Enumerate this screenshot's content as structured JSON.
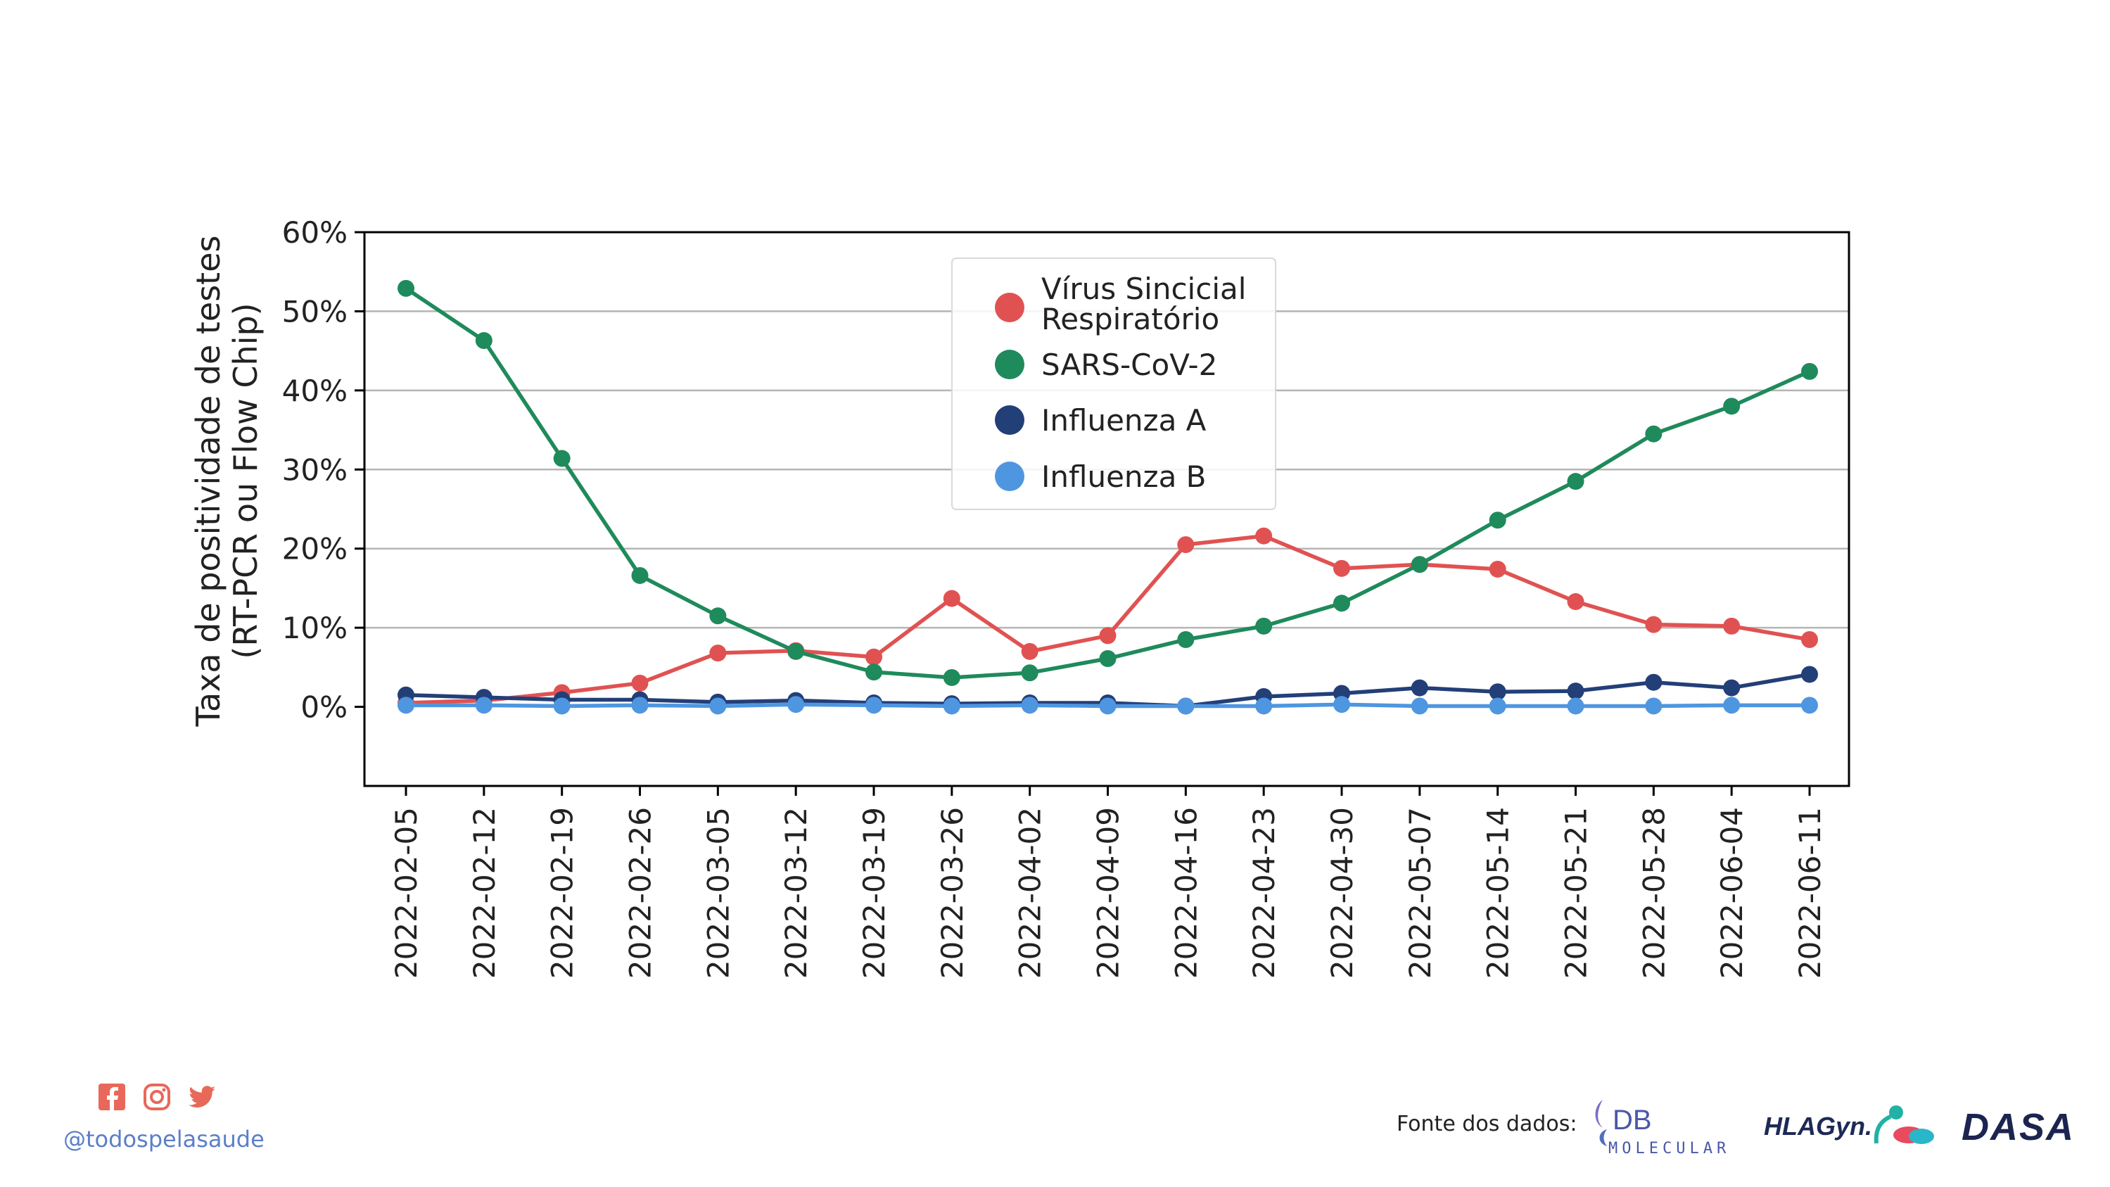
{
  "chart_data": {
    "type": "line",
    "ylabel_line1": "Taxa de positividade de testes",
    "ylabel_line2": "(RT-PCR ou Flow Chip)",
    "xlabel": "",
    "ylim": [
      -10,
      60
    ],
    "yticks": [
      0,
      10,
      20,
      30,
      40,
      50,
      60
    ],
    "ytick_labels": [
      "0%",
      "10%",
      "20%",
      "30%",
      "40%",
      "50%",
      "60%"
    ],
    "grid": "horizontal",
    "legend_position": "top-center",
    "categories": [
      "2022-02-05",
      "2022-02-12",
      "2022-02-19",
      "2022-02-26",
      "2022-03-05",
      "2022-03-12",
      "2022-03-19",
      "2022-03-26",
      "2022-04-02",
      "2022-04-09",
      "2022-04-16",
      "2022-04-23",
      "2022-04-30",
      "2022-05-07",
      "2022-05-14",
      "2022-05-21",
      "2022-05-28",
      "2022-06-04",
      "2022-06-11"
    ],
    "series": [
      {
        "name": "Vírus Sincicial Respiratório",
        "legend_lines": [
          "Vírus Sincicial",
          "Respiratório"
        ],
        "color": "#e05252",
        "values": [
          0.5,
          0.8,
          1.8,
          3.0,
          6.8,
          7.1,
          6.3,
          13.7,
          7.0,
          9.0,
          20.5,
          21.6,
          17.5,
          18.0,
          17.4,
          13.3,
          10.4,
          10.2,
          8.5
        ]
      },
      {
        "name": "SARS-CoV-2",
        "legend_lines": [
          "SARS-CoV-2"
        ],
        "color": "#1f8a5b",
        "values": [
          52.9,
          46.3,
          31.4,
          16.6,
          11.5,
          7.0,
          4.4,
          3.7,
          4.3,
          6.1,
          8.5,
          10.2,
          13.1,
          18.0,
          23.6,
          28.5,
          34.5,
          38.0,
          42.4
        ]
      },
      {
        "name": "Influenza A",
        "legend_lines": [
          "Influenza A"
        ],
        "color": "#233f78",
        "values": [
          1.5,
          1.2,
          0.9,
          0.9,
          0.6,
          0.8,
          0.5,
          0.4,
          0.5,
          0.5,
          0.1,
          1.3,
          1.7,
          2.4,
          1.9,
          2.0,
          3.1,
          2.4,
          4.1
        ]
      },
      {
        "name": "Influenza B",
        "legend_lines": [
          "Influenza B"
        ],
        "color": "#4f96e0",
        "values": [
          0.2,
          0.2,
          0.1,
          0.2,
          0.1,
          0.3,
          0.2,
          0.1,
          0.2,
          0.1,
          0.1,
          0.1,
          0.3,
          0.1,
          0.1,
          0.1,
          0.1,
          0.2,
          0.2
        ]
      }
    ]
  },
  "footer": {
    "handle": "@todospelasaude",
    "source_label": "Fonte dos dados:",
    "social_icons": [
      "facebook-icon",
      "instagram-icon",
      "twitter-icon"
    ],
    "social_color": "#e8685a",
    "logos": {
      "db_molecular": {
        "line1": "DB",
        "line2": "MOLECULAR"
      },
      "hlagyn": "HLAGyn.",
      "dasa": "DASA"
    }
  }
}
